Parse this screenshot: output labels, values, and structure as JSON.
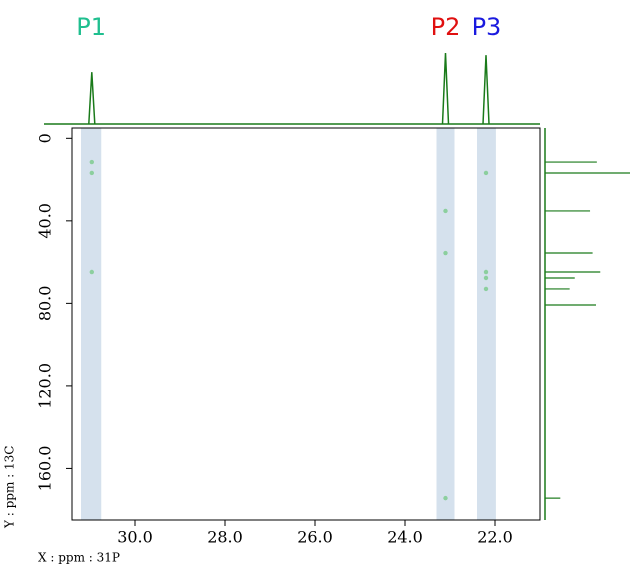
{
  "chart_data": {
    "type": "nmr2d",
    "x_label": "X : ppm : 31P",
    "y_label": "Y : ppm : 13C",
    "xlim": [
      31.4,
      21.0
    ],
    "ylim": [
      -5,
      185
    ],
    "xticks": [
      {
        "value": 30,
        "label": "30.0"
      },
      {
        "value": 28,
        "label": "28.0"
      },
      {
        "value": 26,
        "label": "26.0"
      },
      {
        "value": 24,
        "label": "24.0"
      },
      {
        "value": 22,
        "label": "22.0"
      }
    ],
    "yticks": [
      0,
      {
        "value": 40,
        "label": "40.0"
      },
      {
        "value": 80,
        "label": "80.0"
      },
      {
        "value": 120,
        "label": "120.0"
      },
      {
        "value": 160,
        "label": "160.0"
      }
    ],
    "highlights": [
      {
        "label": "P1",
        "color": "#1fbf8f",
        "range": [
          31.2,
          30.75
        ]
      },
      {
        "label": "P2",
        "color": "#e01010",
        "range": [
          23.3,
          22.9
        ]
      },
      {
        "label": "P3",
        "color": "#1a1adf",
        "range": [
          22.4,
          21.98
        ]
      }
    ],
    "cross_peaks": {
      "color": "#8ccf9e",
      "x": [
        30.96,
        30.96,
        30.96,
        23.1,
        23.1,
        23.1,
        22.2,
        22.2,
        22.2,
        22.2
      ],
      "y": [
        11.5,
        16.8,
        64.8,
        35.2,
        55.6,
        174.4,
        16.8,
        64.8,
        67.7,
        73.0
      ]
    },
    "top_projection": {
      "color": "#1a7a1a",
      "x": [
        30.96,
        23.1,
        22.2
      ],
      "values": [
        73,
        100,
        97
      ]
    },
    "side_projection": {
      "color": "#1a7a1a",
      "y": [
        11.5,
        16.8,
        35.2,
        55.6,
        64.8,
        67.7,
        73.0,
        80.8,
        174.4
      ],
      "values": [
        61,
        100,
        53,
        56,
        65,
        35,
        29,
        60,
        18
      ]
    }
  }
}
